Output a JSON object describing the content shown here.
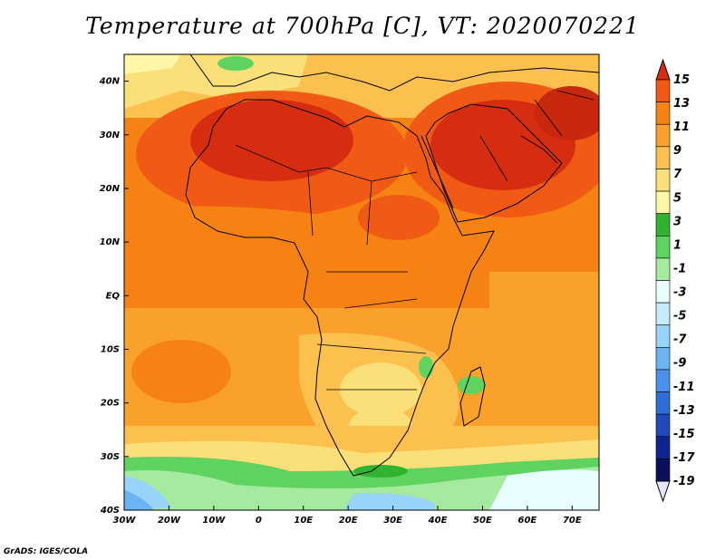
{
  "title": "Temperature at 700hPa [C], VT: 2020070221",
  "credit": "GrADS: IGES/COLA",
  "map": {
    "extent": {
      "lon": [
        -30,
        76
      ],
      "lat": [
        -40,
        45
      ]
    },
    "lat_labels": [
      {
        "lat": 40,
        "text": "40N"
      },
      {
        "lat": 30,
        "text": "30N"
      },
      {
        "lat": 20,
        "text": "20N"
      },
      {
        "lat": 10,
        "text": "10N"
      },
      {
        "lat": 0,
        "text": "EQ"
      },
      {
        "lat": -10,
        "text": "10S"
      },
      {
        "lat": -20,
        "text": "20S"
      },
      {
        "lat": -30,
        "text": "30S"
      },
      {
        "lat": -40,
        "text": "40S"
      }
    ],
    "lon_labels": [
      {
        "lon": -30,
        "text": "30W"
      },
      {
        "lon": -20,
        "text": "20W"
      },
      {
        "lon": -10,
        "text": "10W"
      },
      {
        "lon": 0,
        "text": "0"
      },
      {
        "lon": 10,
        "text": "10E"
      },
      {
        "lon": 20,
        "text": "20E"
      },
      {
        "lon": 30,
        "text": "30E"
      },
      {
        "lon": 40,
        "text": "40E"
      },
      {
        "lon": 50,
        "text": "50E"
      },
      {
        "lon": 60,
        "text": "60E"
      },
      {
        "lon": 70,
        "text": "70E"
      }
    ]
  },
  "colorbar": {
    "labels": [
      "15",
      "13",
      "11",
      "9",
      "7",
      "5",
      "3",
      "1",
      "-1",
      "-3",
      "-5",
      "-7",
      "-9",
      "-11",
      "-13",
      "-15",
      "-17",
      "-19"
    ],
    "colors": [
      "#d62d10",
      "#f05a14",
      "#f78214",
      "#f9a12a",
      "#fbc04d",
      "#fbe07a",
      "#fff7a8",
      "#30b430",
      "#5fd25f",
      "#a6eaa0",
      "#e9ffff",
      "#c5ebfc",
      "#98d4fa",
      "#6bb4f3",
      "#4a91eb",
      "#2f6dd9",
      "#1f49bd",
      "#10248f",
      "#0a0f5c",
      "#e8e4ff"
    ],
    "top_color": "#d62d10",
    "bottom_color": "#e8e4ff"
  }
}
